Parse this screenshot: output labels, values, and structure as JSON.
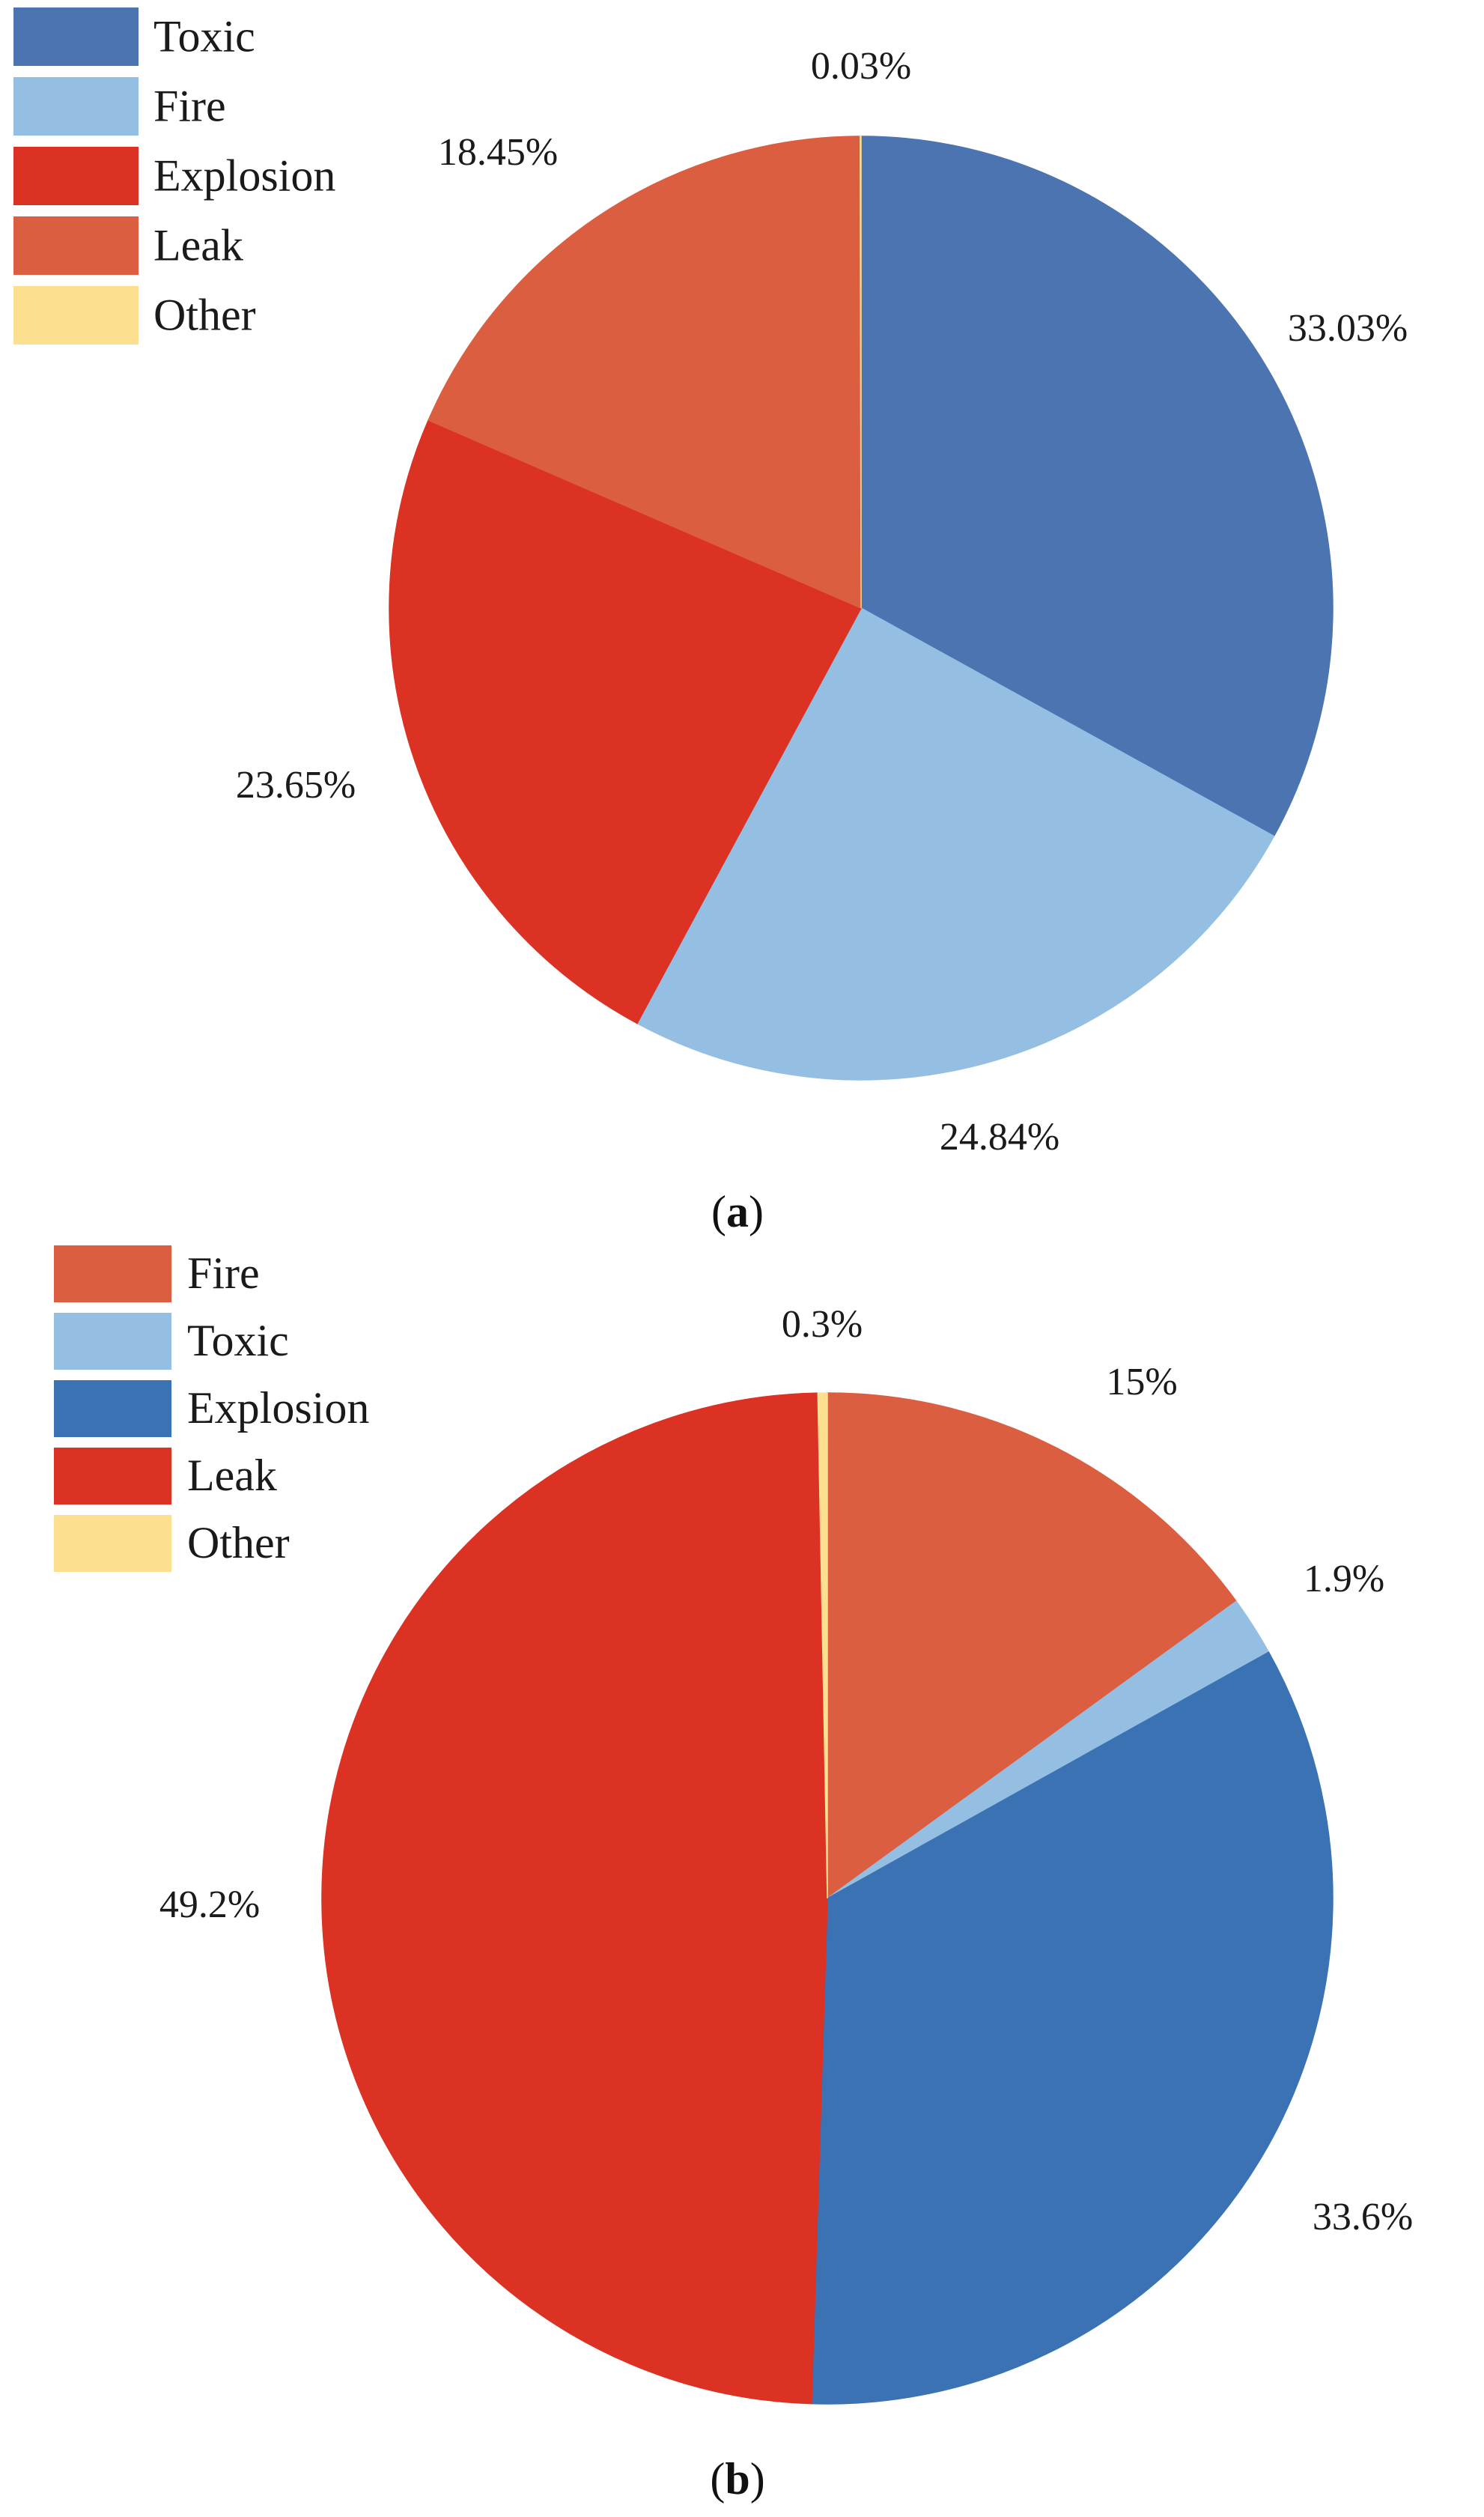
{
  "chart_data": [
    {
      "type": "pie",
      "caption": "a",
      "slices": [
        {
          "name": "Toxic",
          "value": 33.03,
          "label": "33.03%",
          "color": "#4c74b1"
        },
        {
          "name": "Fire",
          "value": 24.84,
          "label": "24.84%",
          "color": "#94bfe2"
        },
        {
          "name": "Explosion",
          "value": 23.65,
          "label": "23.65%",
          "color": "#db3224"
        },
        {
          "name": "Leak",
          "value": 18.45,
          "label": "18.45%",
          "color": "#dc5e40"
        },
        {
          "name": "Other",
          "value": 0.03,
          "label": "0.03%",
          "color": "#fde08f"
        }
      ]
    },
    {
      "type": "pie",
      "caption": "b",
      "slices": [
        {
          "name": "Fire",
          "value": 15,
          "label": "15%",
          "color": "#dc5e40"
        },
        {
          "name": "Toxic",
          "value": 1.9,
          "label": "1.9%",
          "color": "#94bfe2"
        },
        {
          "name": "Explosion",
          "value": 33.6,
          "label": "33.6%",
          "color": "#3a72b3"
        },
        {
          "name": "Leak",
          "value": 49.2,
          "label": "49.2%",
          "color": "#db3224"
        },
        {
          "name": "Other",
          "value": 0.3,
          "label": "0.3%",
          "color": "#fde08f"
        }
      ]
    }
  ]
}
